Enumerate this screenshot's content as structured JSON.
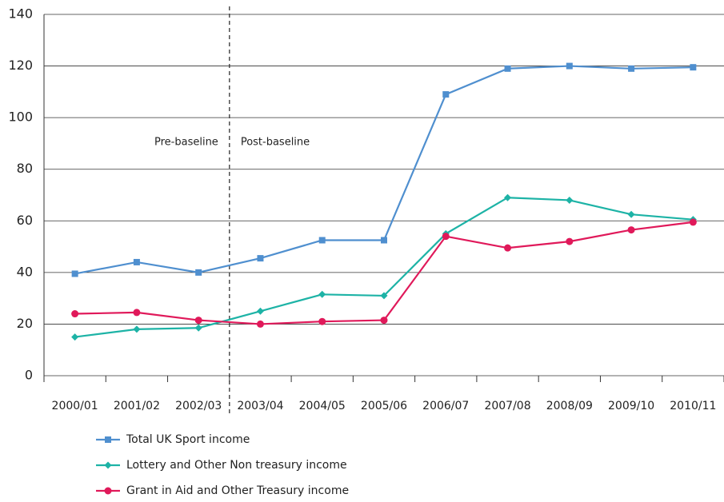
{
  "chart_data": {
    "type": "line",
    "categories": [
      "2000/01",
      "2001/02",
      "2002/03",
      "2003/04",
      "2004/05",
      "2005/06",
      "2006/07",
      "2007/08",
      "2008/09",
      "2009/10",
      "2010/11"
    ],
    "series": [
      {
        "name": "Total UK Sport income",
        "color": "#4f8fcf",
        "marker": "square",
        "values": [
          39.5,
          44,
          40,
          45.5,
          52.5,
          52.5,
          109,
          119,
          120,
          119,
          119.5
        ]
      },
      {
        "name": "Lottery and Other Non treasury income",
        "color": "#1db3a6",
        "marker": "diamond",
        "values": [
          15,
          18,
          18.5,
          25,
          31.5,
          31,
          55,
          69,
          68,
          62.5,
          60.5
        ]
      },
      {
        "name": "Grant in Aid and Other Treasury income",
        "color": "#e0195a",
        "marker": "circle",
        "values": [
          24,
          24.5,
          21.5,
          20,
          21,
          21.5,
          54,
          49.5,
          52,
          56.5,
          59.5
        ]
      }
    ],
    "ylim": [
      0,
      140
    ],
    "yticks": [
      0,
      20,
      40,
      60,
      80,
      100,
      120,
      140
    ],
    "grid": true,
    "annotations": [
      "Pre-baseline",
      "Post-baseline"
    ]
  }
}
